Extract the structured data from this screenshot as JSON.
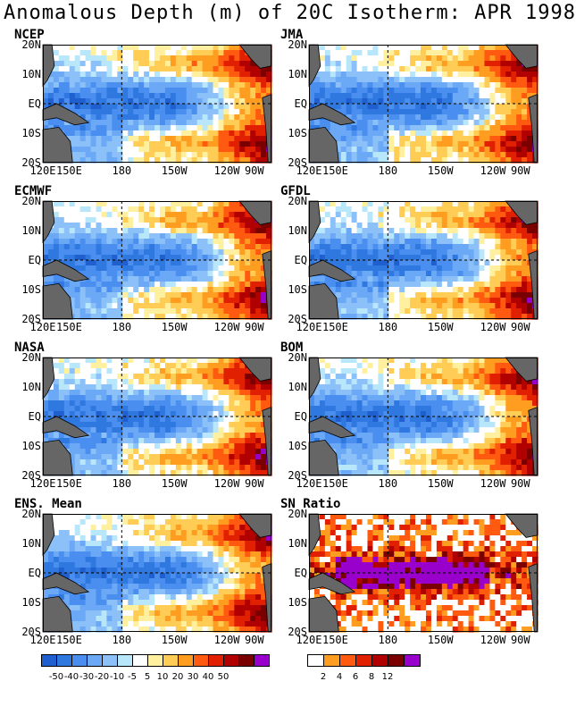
{
  "title": "Anomalous Depth (m) of 20C Isotherm: APR 1998",
  "lat_labels": [
    "20N",
    "10N",
    "EQ",
    "10S",
    "20S"
  ],
  "lon_labels": [
    "120E",
    "150E",
    "180",
    "150W",
    "120W",
    "90W"
  ],
  "panels": [
    {
      "name": "NCEP",
      "variant": "anomaly",
      "seed": 3
    },
    {
      "name": "JMA",
      "variant": "anomaly",
      "seed": 7
    },
    {
      "name": "ECMWF",
      "variant": "anomaly",
      "seed": 11
    },
    {
      "name": "GFDL",
      "variant": "anomaly",
      "seed": 13
    },
    {
      "name": "NASA",
      "variant": "anomaly",
      "seed": 17
    },
    {
      "name": "BOM",
      "variant": "anomaly",
      "seed": 19
    },
    {
      "name": "ENS. Mean",
      "variant": "anomaly",
      "seed": 23
    },
    {
      "name": "SN Ratio",
      "variant": "sn",
      "seed": 29
    }
  ],
  "anomaly_scale": {
    "colors": [
      "#1f5fd0",
      "#2f78e0",
      "#4a8ff0",
      "#6ba8f5",
      "#8cc0f8",
      "#b8e6fb",
      "#ffffff",
      "#fff0a0",
      "#ffcc55",
      "#ff9d20",
      "#ff5a10",
      "#e02000",
      "#b00000",
      "#7a0000",
      "#9900cc"
    ],
    "labels": [
      "-50",
      "-40",
      "-30",
      "-20",
      "-10",
      "-5",
      "5",
      "10",
      "20",
      "30",
      "40",
      "50"
    ]
  },
  "sn_scale": {
    "colors": [
      "#ffffff",
      "#ff9d20",
      "#ff5a10",
      "#e02000",
      "#b00000",
      "#7a0000",
      "#9900cc"
    ],
    "labels": [
      "2",
      "4",
      "6",
      "8",
      "12"
    ]
  },
  "land_color": "#666666"
}
